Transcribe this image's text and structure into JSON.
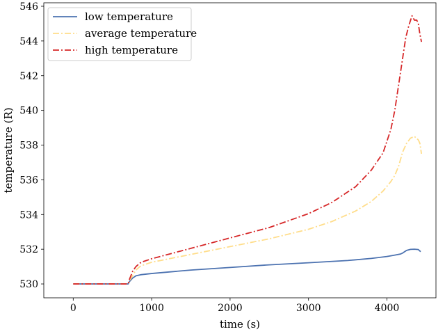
{
  "chart_data": {
    "type": "line",
    "title": "",
    "xlabel": "time (s)",
    "ylabel": "temperature (R)",
    "xlim": [
      -375,
      4625
    ],
    "ylim": [
      529.2,
      546.2
    ],
    "xticks": [
      0,
      1000,
      2000,
      3000,
      4000
    ],
    "yticks": [
      530,
      532,
      534,
      536,
      538,
      540,
      542,
      544,
      546
    ],
    "grid": false,
    "legend_position": "upper-left",
    "series": [
      {
        "name": "low temperature",
        "color": "#4c72b0",
        "linestyle": "solid",
        "x": [
          0,
          300,
          600,
          700,
          720,
          760,
          800,
          860,
          1000,
          1500,
          2000,
          2500,
          3000,
          3500,
          3800,
          4000,
          4100,
          4170,
          4200,
          4250,
          4300,
          4350,
          4400,
          4430
        ],
        "y": [
          530.0,
          530.0,
          530.0,
          530.0,
          530.15,
          530.35,
          530.47,
          530.53,
          530.6,
          530.8,
          530.95,
          531.1,
          531.22,
          531.35,
          531.47,
          531.58,
          531.66,
          531.72,
          531.78,
          531.93,
          531.99,
          532.0,
          531.98,
          531.86
        ]
      },
      {
        "name": "average temperature",
        "color": "#ffdd8a",
        "linestyle": "dashdot",
        "x": [
          0,
          300,
          600,
          700,
          720,
          760,
          800,
          850,
          900,
          1000,
          1500,
          2000,
          2500,
          3000,
          3300,
          3600,
          3800,
          3950,
          4050,
          4100,
          4150,
          4200,
          4250,
          4300,
          4350,
          4400,
          4420,
          4440
        ],
        "y": [
          530.0,
          530.0,
          530.0,
          530.0,
          530.2,
          530.5,
          530.8,
          531.0,
          531.1,
          531.25,
          531.7,
          532.15,
          532.6,
          533.15,
          533.6,
          534.2,
          534.75,
          535.35,
          535.9,
          536.25,
          536.8,
          537.6,
          538.1,
          538.4,
          538.5,
          538.3,
          538.1,
          537.5
        ]
      },
      {
        "name": "high temperature",
        "color": "#d62728",
        "linestyle": "dashdot",
        "x": [
          0,
          300,
          600,
          700,
          720,
          760,
          800,
          850,
          900,
          1000,
          1500,
          2000,
          2500,
          3000,
          3300,
          3600,
          3800,
          3950,
          4050,
          4100,
          4150,
          4200,
          4240,
          4280,
          4320,
          4350,
          4380,
          4400,
          4420,
          4440
        ],
        "y": [
          530.0,
          530.0,
          530.0,
          530.0,
          530.3,
          530.75,
          531.0,
          531.2,
          531.3,
          531.45,
          532.05,
          532.65,
          533.25,
          534.05,
          534.7,
          535.6,
          536.55,
          537.55,
          538.9,
          540.0,
          541.5,
          543.0,
          544.2,
          544.9,
          545.45,
          545.2,
          545.2,
          545.0,
          544.4,
          543.95
        ]
      }
    ]
  }
}
